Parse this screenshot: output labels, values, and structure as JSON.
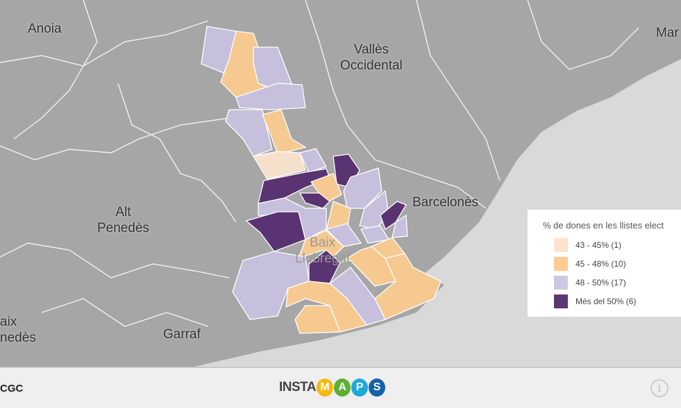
{
  "map": {
    "labels": {
      "anoia": "Anoia",
      "valles": "Vallès\nOccidental",
      "maresme": "Mar",
      "barcelones": "Barcelonès",
      "alt_penedes": "Alt\nPenedès",
      "baix_llobregat": "Baix\nLlobregat",
      "baix_penedes": "aix\nnedès",
      "garraf": "Garraf"
    },
    "colors": {
      "land": "#a6a6a6",
      "sea": "#d9d9d9",
      "c1": "#f5e0cb",
      "c2": "#f5c990",
      "c3": "#c6c0dc",
      "c4": "#5a3372"
    }
  },
  "legend": {
    "title": "% de dones en les llistes elect",
    "items": [
      {
        "label": "43 - 45% (1)",
        "color": "#fde3cc"
      },
      {
        "label": "45 - 48% (10)",
        "color": "#fdcb90"
      },
      {
        "label": "48 - 50% (17)",
        "color": "#cdc8e2"
      },
      {
        "label": "Més del 50% (6)",
        "color": "#5c3873"
      }
    ]
  },
  "footer": {
    "attribution": "CGC",
    "logo_text": "INSTA",
    "logo_letters": [
      {
        "l": "M",
        "c": "#f6b90e"
      },
      {
        "l": "A",
        "c": "#5cb032"
      },
      {
        "l": "P",
        "c": "#1ea9dc"
      },
      {
        "l": "S",
        "c": "#1560a8"
      }
    ],
    "info_icon": "i"
  }
}
